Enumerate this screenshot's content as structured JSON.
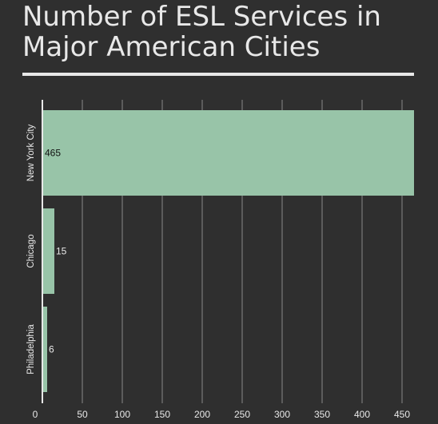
{
  "chart_data": {
    "type": "bar",
    "orientation": "horizontal",
    "title": "Number of ESL Services in Major American Cities",
    "categories": [
      "New York City",
      "Chicago",
      "Philadelphia"
    ],
    "values": [
      465,
      15,
      6
    ],
    "data_labels": [
      "465",
      "15",
      "6"
    ],
    "xlabel": "",
    "ylabel": "",
    "xlim": [
      0,
      465
    ],
    "x_ticks": [
      0,
      50,
      100,
      150,
      200,
      250,
      300,
      350,
      400,
      450
    ],
    "x_tick_labels": [
      "0",
      "50",
      "100",
      "150",
      "200",
      "250",
      "300",
      "350",
      "400",
      "450"
    ],
    "grid": "vertical",
    "legend": "none"
  },
  "colors": {
    "background": "#2f2f2f",
    "bar": "#98c4a8",
    "text": "#e8e8e8",
    "grid": "#8a8a8a",
    "label_inside": "#111111"
  }
}
